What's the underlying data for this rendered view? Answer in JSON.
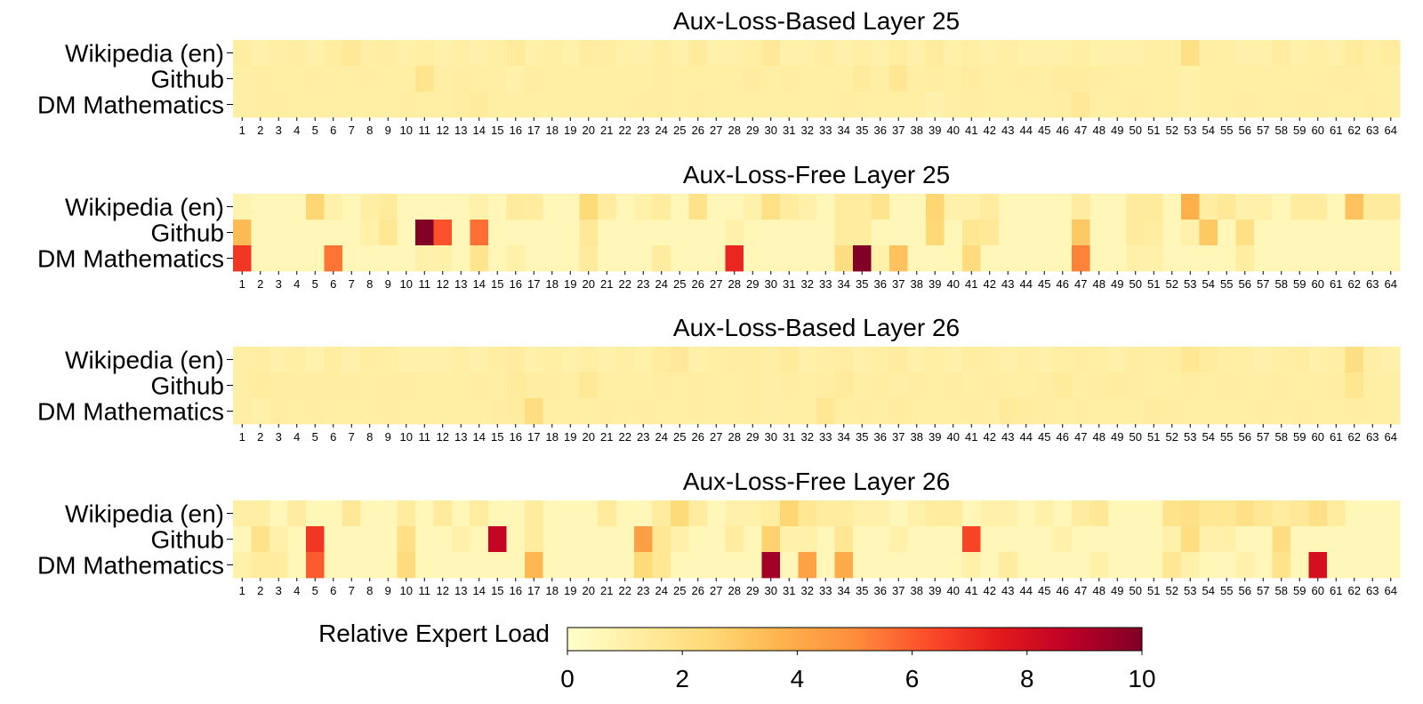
{
  "chart_data": [
    {
      "type": "heatmap",
      "title": "Aux-Loss-Based Layer 25",
      "rows": [
        "Wikipedia (en)",
        "Github",
        "DM Mathematics"
      ],
      "columns": [
        "1",
        "2",
        "3",
        "4",
        "5",
        "6",
        "7",
        "8",
        "9",
        "10",
        "11",
        "12",
        "13",
        "14",
        "15",
        "16",
        "17",
        "18",
        "19",
        "20",
        "21",
        "22",
        "23",
        "24",
        "25",
        "26",
        "27",
        "28",
        "29",
        "30",
        "31",
        "32",
        "33",
        "34",
        "35",
        "36",
        "37",
        "38",
        "39",
        "40",
        "41",
        "42",
        "43",
        "44",
        "45",
        "46",
        "47",
        "48",
        "49",
        "50",
        "51",
        "52",
        "53",
        "54",
        "55",
        "56",
        "57",
        "58",
        "59",
        "60",
        "61",
        "62",
        "63",
        "64"
      ],
      "values": [
        [
          1.2,
          1.0,
          1.1,
          1.2,
          1.0,
          1.2,
          1.5,
          1.1,
          1.2,
          1.0,
          1.1,
          1.0,
          1.1,
          1.0,
          1.1,
          1.4,
          1.0,
          1.1,
          1.0,
          1.3,
          1.2,
          1.0,
          1.0,
          1.2,
          1.0,
          1.4,
          1.0,
          1.0,
          1.1,
          1.5,
          1.0,
          1.0,
          1.2,
          1.0,
          1.1,
          1.0,
          1.2,
          1.0,
          1.4,
          1.0,
          1.1,
          1.0,
          1.1,
          1.0,
          1.0,
          1.0,
          1.1,
          1.0,
          1.0,
          1.0,
          1.1,
          1.1,
          2.0,
          1.1,
          1.1,
          1.0,
          1.0,
          1.3,
          1.0,
          1.1,
          1.0,
          1.4,
          1.1,
          1.3
        ],
        [
          1.1,
          1.2,
          1.1,
          1.1,
          1.2,
          1.1,
          1.1,
          1.2,
          1.1,
          1.1,
          1.8,
          1.1,
          1.2,
          1.1,
          1.1,
          1.0,
          1.2,
          1.1,
          1.1,
          1.1,
          1.1,
          1.1,
          1.1,
          1.2,
          1.1,
          1.1,
          1.1,
          1.1,
          1.3,
          1.1,
          1.2,
          1.1,
          1.1,
          1.1,
          1.4,
          1.1,
          1.6,
          1.1,
          1.2,
          1.1,
          1.3,
          1.1,
          1.1,
          1.2,
          1.1,
          1.3,
          1.3,
          1.2,
          1.1,
          1.1,
          1.1,
          1.1,
          1.0,
          1.1,
          1.1,
          1.1,
          1.1,
          1.1,
          1.1,
          1.1,
          1.2,
          1.2,
          1.1,
          1.1
        ],
        [
          1.1,
          1.2,
          1.2,
          1.1,
          1.1,
          1.1,
          1.1,
          1.1,
          1.1,
          1.2,
          1.1,
          1.1,
          1.2,
          1.4,
          1.1,
          1.1,
          1.1,
          1.1,
          1.1,
          1.1,
          1.1,
          1.1,
          1.2,
          1.2,
          1.1,
          1.2,
          1.1,
          1.1,
          1.1,
          1.1,
          1.1,
          1.1,
          1.1,
          1.2,
          1.1,
          1.1,
          1.1,
          1.1,
          0.9,
          1.1,
          1.2,
          1.1,
          1.1,
          1.1,
          1.1,
          1.2,
          1.5,
          1.1,
          1.1,
          1.2,
          1.1,
          1.1,
          1.0,
          1.1,
          1.1,
          1.2,
          1.1,
          1.1,
          1.2,
          1.2,
          1.1,
          1.1,
          1.2,
          1.1
        ]
      ],
      "colorbar_range": [
        0,
        10
      ]
    },
    {
      "type": "heatmap",
      "title": "Aux-Loss-Free Layer 25",
      "rows": [
        "Wikipedia (en)",
        "Github",
        "DM Mathematics"
      ],
      "columns": [
        "1",
        "2",
        "3",
        "4",
        "5",
        "6",
        "7",
        "8",
        "9",
        "10",
        "11",
        "12",
        "13",
        "14",
        "15",
        "16",
        "17",
        "18",
        "19",
        "20",
        "21",
        "22",
        "23",
        "24",
        "25",
        "26",
        "27",
        "28",
        "29",
        "30",
        "31",
        "32",
        "33",
        "34",
        "35",
        "36",
        "37",
        "38",
        "39",
        "40",
        "41",
        "42",
        "43",
        "44",
        "45",
        "46",
        "47",
        "48",
        "49",
        "50",
        "51",
        "52",
        "53",
        "54",
        "55",
        "56",
        "57",
        "58",
        "59",
        "60",
        "61",
        "62",
        "63",
        "64"
      ],
      "values": [
        [
          0.8,
          0.6,
          0.6,
          0.6,
          2.6,
          1.0,
          0.6,
          1.1,
          1.4,
          0.6,
          0.6,
          0.6,
          0.6,
          1.0,
          0.6,
          1.4,
          1.3,
          0.6,
          0.6,
          2.4,
          1.3,
          0.6,
          1.0,
          1.3,
          0.6,
          1.9,
          0.6,
          0.6,
          1.0,
          2.0,
          1.3,
          1.0,
          0.6,
          1.3,
          1.3,
          1.8,
          0.6,
          0.6,
          2.6,
          1.0,
          1.0,
          1.3,
          0.6,
          0.6,
          0.6,
          0.6,
          1.3,
          0.6,
          0.6,
          1.4,
          1.4,
          0.6,
          3.8,
          1.2,
          1.5,
          1.0,
          1.0,
          0.6,
          1.3,
          1.3,
          0.6,
          3.2,
          1.4,
          1.4
        ],
        [
          3.5,
          0.6,
          0.6,
          0.6,
          0.6,
          0.6,
          0.6,
          1.0,
          1.6,
          0.6,
          10.0,
          6.2,
          0.6,
          5.6,
          0.6,
          0.6,
          0.6,
          0.6,
          0.6,
          1.5,
          0.6,
          0.6,
          0.6,
          0.6,
          0.6,
          0.6,
          0.6,
          1.0,
          0.6,
          0.6,
          0.6,
          0.6,
          0.6,
          1.3,
          1.3,
          0.6,
          0.6,
          0.6,
          2.5,
          0.6,
          1.6,
          1.5,
          0.6,
          0.6,
          0.6,
          0.6,
          3.0,
          0.6,
          0.6,
          1.4,
          1.2,
          0.6,
          1.0,
          3.0,
          0.6,
          2.0,
          0.6,
          0.6,
          0.6,
          0.6,
          0.6,
          0.6,
          0.6,
          0.6
        ],
        [
          6.8,
          0.6,
          0.6,
          0.6,
          0.6,
          5.5,
          0.6,
          0.6,
          0.6,
          0.6,
          1.0,
          1.0,
          0.6,
          1.8,
          0.6,
          1.0,
          0.6,
          0.6,
          0.6,
          1.4,
          0.6,
          0.6,
          0.6,
          1.3,
          0.6,
          0.6,
          0.6,
          7.2,
          0.6,
          0.6,
          0.6,
          0.6,
          0.6,
          2.2,
          10.0,
          1.0,
          3.2,
          0.6,
          0.6,
          0.6,
          2.3,
          0.6,
          0.6,
          0.6,
          0.6,
          0.6,
          5.2,
          0.6,
          0.6,
          1.0,
          1.0,
          0.6,
          0.6,
          0.6,
          0.6,
          1.2,
          0.6,
          0.6,
          0.6,
          0.6,
          0.6,
          0.6,
          0.6,
          0.6
        ]
      ],
      "colorbar_range": [
        0,
        10
      ]
    },
    {
      "type": "heatmap",
      "title": "Aux-Loss-Based Layer 26",
      "rows": [
        "Wikipedia (en)",
        "Github",
        "DM Mathematics"
      ],
      "columns": [
        "1",
        "2",
        "3",
        "4",
        "5",
        "6",
        "7",
        "8",
        "9",
        "10",
        "11",
        "12",
        "13",
        "14",
        "15",
        "16",
        "17",
        "18",
        "19",
        "20",
        "21",
        "22",
        "23",
        "24",
        "25",
        "26",
        "27",
        "28",
        "29",
        "30",
        "31",
        "32",
        "33",
        "34",
        "35",
        "36",
        "37",
        "38",
        "39",
        "40",
        "41",
        "42",
        "43",
        "44",
        "45",
        "46",
        "47",
        "48",
        "49",
        "50",
        "51",
        "52",
        "53",
        "54",
        "55",
        "56",
        "57",
        "58",
        "59",
        "60",
        "61",
        "62",
        "63",
        "64"
      ],
      "values": [
        [
          1.1,
          1.2,
          1.0,
          1.1,
          0.9,
          1.2,
          1.0,
          1.2,
          1.1,
          1.0,
          1.0,
          1.0,
          1.1,
          1.0,
          1.2,
          1.3,
          1.0,
          1.1,
          1.0,
          1.1,
          1.0,
          1.1,
          1.0,
          1.3,
          1.5,
          1.0,
          1.1,
          1.2,
          1.2,
          1.1,
          1.4,
          1.0,
          1.1,
          1.2,
          1.0,
          1.1,
          1.3,
          1.0,
          1.1,
          1.0,
          1.2,
          1.1,
          1.0,
          1.1,
          1.0,
          1.1,
          1.2,
          1.1,
          1.0,
          1.2,
          1.1,
          1.2,
          1.6,
          1.3,
          1.1,
          1.1,
          1.0,
          1.1,
          1.2,
          1.0,
          1.1,
          2.1,
          1.1,
          1.0
        ],
        [
          1.1,
          1.3,
          1.2,
          1.2,
          1.2,
          1.2,
          1.2,
          1.1,
          1.2,
          1.2,
          1.1,
          1.1,
          1.1,
          1.2,
          1.1,
          1.4,
          1.2,
          1.2,
          1.1,
          1.5,
          1.1,
          1.1,
          1.1,
          1.2,
          1.1,
          1.2,
          1.1,
          1.1,
          1.2,
          1.1,
          1.2,
          1.1,
          1.2,
          1.4,
          1.1,
          1.2,
          1.1,
          1.2,
          1.1,
          1.2,
          1.1,
          1.2,
          1.1,
          1.1,
          1.2,
          1.4,
          1.1,
          1.2,
          1.3,
          1.2,
          1.1,
          1.1,
          1.2,
          1.1,
          1.2,
          1.1,
          1.1,
          1.2,
          1.1,
          1.1,
          1.2,
          1.7,
          1.1,
          1.1
        ],
        [
          1.1,
          1.0,
          1.2,
          1.1,
          1.2,
          1.1,
          1.1,
          1.1,
          1.2,
          1.1,
          1.1,
          1.1,
          1.1,
          1.1,
          1.2,
          1.3,
          2.2,
          1.1,
          1.1,
          1.1,
          1.2,
          1.1,
          1.2,
          1.1,
          1.1,
          1.2,
          1.1,
          1.1,
          1.2,
          1.1,
          1.1,
          1.1,
          1.6,
          1.1,
          1.2,
          1.1,
          1.3,
          1.1,
          1.1,
          1.1,
          1.2,
          1.1,
          1.4,
          1.3,
          1.2,
          1.1,
          1.2,
          1.1,
          1.1,
          1.1,
          1.3,
          1.2,
          1.1,
          1.1,
          1.1,
          1.1,
          1.2,
          1.1,
          1.2,
          1.1,
          1.1,
          1.2,
          1.1,
          1.1
        ]
      ],
      "colorbar_range": [
        0,
        10
      ]
    },
    {
      "type": "heatmap",
      "title": "Aux-Loss-Free Layer 26",
      "rows": [
        "Wikipedia (en)",
        "Github",
        "DM Mathematics"
      ],
      "columns": [
        "1",
        "2",
        "3",
        "4",
        "5",
        "6",
        "7",
        "8",
        "9",
        "10",
        "11",
        "12",
        "13",
        "14",
        "15",
        "16",
        "17",
        "18",
        "19",
        "20",
        "21",
        "22",
        "23",
        "24",
        "25",
        "26",
        "27",
        "28",
        "29",
        "30",
        "31",
        "32",
        "33",
        "34",
        "35",
        "36",
        "37",
        "38",
        "39",
        "40",
        "41",
        "42",
        "43",
        "44",
        "45",
        "46",
        "47",
        "48",
        "49",
        "50",
        "51",
        "52",
        "53",
        "54",
        "55",
        "56",
        "57",
        "58",
        "59",
        "60",
        "61",
        "62",
        "63",
        "64"
      ],
      "values": [
        [
          1.1,
          1.1,
          0.6,
          1.3,
          0.6,
          0.6,
          1.5,
          0.6,
          0.6,
          1.3,
          0.6,
          1.4,
          0.6,
          1.3,
          0.6,
          0.6,
          1.3,
          0.6,
          0.6,
          0.6,
          1.4,
          0.6,
          0.6,
          1.3,
          2.4,
          1.3,
          0.6,
          1.0,
          1.0,
          1.2,
          2.6,
          1.6,
          1.3,
          1.3,
          1.0,
          1.0,
          0.6,
          1.0,
          1.3,
          1.3,
          0.6,
          1.0,
          1.0,
          0.6,
          1.0,
          0.6,
          1.3,
          1.5,
          0.6,
          0.6,
          0.6,
          1.9,
          2.0,
          1.6,
          1.6,
          2.0,
          1.6,
          1.3,
          1.5,
          2.0,
          1.3,
          0.6,
          0.6,
          0.6
        ],
        [
          0.6,
          1.9,
          1.0,
          0.6,
          6.8,
          0.6,
          0.6,
          0.6,
          0.6,
          2.1,
          0.6,
          0.6,
          1.0,
          0.6,
          8.5,
          0.6,
          1.3,
          0.6,
          0.6,
          0.6,
          0.6,
          0.6,
          4.4,
          1.6,
          1.0,
          0.6,
          0.6,
          1.3,
          0.6,
          2.7,
          1.0,
          1.0,
          0.6,
          1.6,
          0.6,
          0.6,
          1.0,
          0.6,
          0.6,
          0.6,
          6.5,
          0.6,
          0.6,
          0.6,
          0.6,
          1.0,
          0.6,
          0.6,
          0.6,
          0.6,
          0.6,
          1.0,
          2.2,
          1.0,
          1.0,
          0.6,
          0.6,
          2.2,
          0.6,
          0.6,
          0.6,
          0.6,
          0.6,
          0.6
        ],
        [
          1.0,
          1.3,
          1.3,
          0.6,
          6.0,
          0.6,
          0.6,
          0.6,
          0.6,
          2.3,
          0.6,
          0.6,
          0.6,
          0.6,
          0.6,
          0.6,
          3.6,
          0.6,
          0.6,
          0.6,
          0.6,
          0.6,
          2.4,
          1.6,
          0.6,
          0.6,
          0.6,
          0.6,
          0.6,
          9.3,
          0.6,
          4.3,
          0.6,
          4.0,
          0.6,
          0.6,
          0.6,
          0.6,
          0.6,
          0.6,
          1.0,
          0.6,
          1.3,
          0.6,
          0.6,
          0.6,
          0.6,
          1.0,
          0.6,
          0.6,
          0.6,
          1.6,
          1.0,
          0.6,
          0.6,
          1.0,
          0.6,
          1.9,
          0.6,
          8.0,
          0.6,
          0.6,
          0.6,
          0.6
        ]
      ],
      "colorbar_range": [
        0,
        10
      ]
    }
  ],
  "colorbar": {
    "label": "Relative Expert Load",
    "min": 0,
    "max": 10,
    "ticks": [
      "0",
      "2",
      "4",
      "6",
      "8",
      "10"
    ],
    "colormap": "YlOrRd"
  }
}
